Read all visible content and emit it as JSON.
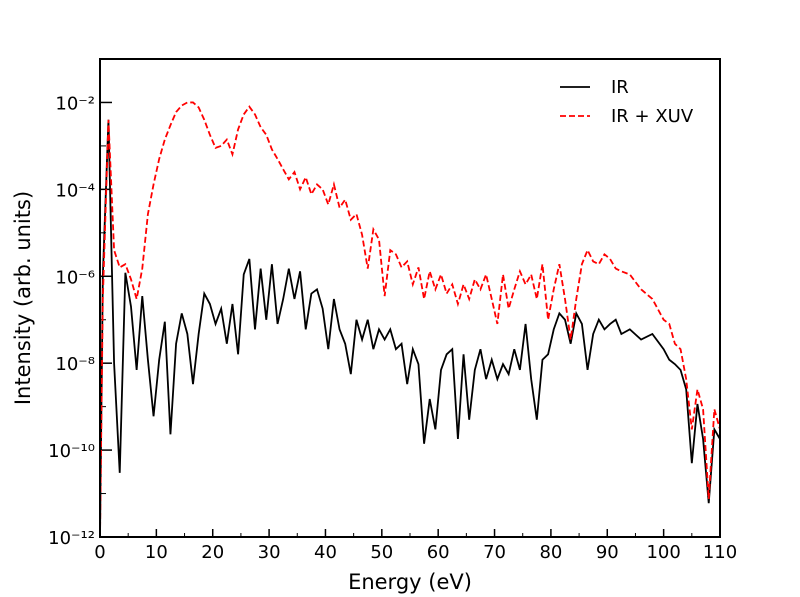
{
  "chart_data": {
    "type": "line",
    "xlabel": "Energy (eV)",
    "ylabel": "Intensity (arb. units)",
    "yscale": "log",
    "legend": "upper right",
    "xlim": [
      0,
      110
    ],
    "ylim": [
      1e-12,
      0.1
    ],
    "xticks": [
      0,
      10,
      20,
      30,
      40,
      50,
      60,
      70,
      80,
      90,
      100,
      110
    ],
    "xminorticks": [
      5,
      15,
      25,
      35,
      45,
      55,
      65,
      75,
      85,
      95,
      105
    ],
    "yticks": [
      {
        "value": 1e-12,
        "label": "10⁻¹²"
      },
      {
        "value": 1e-10,
        "label": "10⁻¹⁰"
      },
      {
        "value": 1e-08,
        "label": "10⁻⁸"
      },
      {
        "value": 1e-06,
        "label": "10⁻⁶"
      },
      {
        "value": 0.0001,
        "label": "10⁻⁴"
      },
      {
        "value": 0.01,
        "label": "10⁻²"
      }
    ],
    "yminorticks": [
      1e-11,
      1e-09,
      1e-07,
      1e-05,
      0.001,
      0.1
    ],
    "x": [
      0,
      0.5,
      1.5,
      2.5,
      3.5,
      4.5,
      5.5,
      6.5,
      7.5,
      8.5,
      9.5,
      10.5,
      11.5,
      12.5,
      13.5,
      14.5,
      15.5,
      16.5,
      17.5,
      18.5,
      19.5,
      20.5,
      21.5,
      22.5,
      23.5,
      24.5,
      25.5,
      26.5,
      27.5,
      28.5,
      29.5,
      30.5,
      31.5,
      32.5,
      33.5,
      34.5,
      35.5,
      36.5,
      37.5,
      38.5,
      39.5,
      40.5,
      41.5,
      42.5,
      43.5,
      44.5,
      45.5,
      46.5,
      47.5,
      48.5,
      49.5,
      50.5,
      51.5,
      52.5,
      53.5,
      54.5,
      55.5,
      56.5,
      57.5,
      58.5,
      59.5,
      60.5,
      61.5,
      62.5,
      63.5,
      64.5,
      65.5,
      66.5,
      67.5,
      68.5,
      69.5,
      70.5,
      71.5,
      72.5,
      73.5,
      74.5,
      75.5,
      76.5,
      77.5,
      78.5,
      79.5,
      80.5,
      81.5,
      82.5,
      83.5,
      84.5,
      85.5,
      86.5,
      87.5,
      88.5,
      89.5,
      90.5,
      91.5,
      92.5,
      94,
      96,
      98,
      100,
      101,
      102,
      103,
      104,
      105,
      106,
      107,
      108,
      109,
      110
    ],
    "series": [
      {
        "name": "IR",
        "color": "#000000",
        "dash": "solid",
        "values": [
          1e-12,
          1e-06,
          0.004,
          1e-08,
          3e-11,
          1.2e-06,
          2e-07,
          7e-09,
          3.5e-07,
          1.2e-08,
          6e-10,
          1.2e-08,
          9e-08,
          2.3e-10,
          2.8e-08,
          1.4e-07,
          4.7e-08,
          3.3e-09,
          4.7e-08,
          4e-07,
          2.3e-07,
          8e-08,
          1.8e-07,
          2.8e-08,
          2.3e-07,
          1.6e-08,
          1.1e-06,
          2.5e-06,
          6e-08,
          1.5e-06,
          1e-07,
          1.9e-06,
          8e-08,
          3e-07,
          1.5e-06,
          3e-07,
          1.3e-06,
          6e-08,
          4e-07,
          5e-07,
          1.8e-07,
          2.1e-08,
          3e-07,
          6e-08,
          2.8e-08,
          5.6e-09,
          1e-07,
          3.5e-08,
          1e-07,
          2.1e-08,
          6e-08,
          3.5e-08,
          6e-08,
          2.1e-08,
          2.8e-08,
          3.3e-09,
          2.1e-08,
          9.5e-09,
          1.4e-10,
          1.5e-09,
          3e-10,
          7e-09,
          1.6e-08,
          2.1e-08,
          1.8e-10,
          1.6e-08,
          5e-10,
          7e-09,
          2.1e-08,
          4.3e-09,
          1.2e-08,
          4.3e-09,
          9.5e-09,
          5.6e-09,
          2.1e-08,
          7e-09,
          8e-08,
          4.3e-09,
          5e-10,
          1.2e-08,
          1.6e-08,
          6e-08,
          1.4e-07,
          1e-07,
          2.8e-08,
          1.4e-07,
          8e-08,
          7e-09,
          4.7e-08,
          1e-07,
          6e-08,
          8e-08,
          1e-07,
          4.7e-08,
          6e-08,
          3.5e-08,
          4.7e-08,
          2.1e-08,
          1.2e-08,
          9.5e-09,
          7e-09,
          2.5e-09,
          5e-11,
          1.15e-09,
          1.8e-10,
          6e-12,
          3e-10,
          1.8e-10
        ]
      },
      {
        "name": "IR + XUV",
        "color": "#ff0000",
        "dash": "dashed",
        "values": [
          1e-12,
          3e-07,
          0.004,
          4e-06,
          1.6e-06,
          1.9e-06,
          8.5e-07,
          3e-07,
          1.5e-06,
          2.7e-05,
          0.00013,
          0.0005,
          0.0014,
          0.003,
          0.006,
          0.0085,
          0.01,
          0.01,
          0.0077,
          0.004,
          0.0018,
          0.0009,
          0.001,
          0.0014,
          0.00064,
          0.0024,
          0.0053,
          0.008,
          0.0053,
          0.0027,
          0.0018,
          0.00083,
          0.0005,
          0.00029,
          0.00017,
          0.00025,
          0.0001,
          0.00019,
          7.7e-05,
          0.00013,
          0.0001,
          4.5e-05,
          0.00013,
          3.8e-05,
          5.8e-05,
          2e-05,
          2.7e-05,
          9e-06,
          1.5e-06,
          1.2e-05,
          7e-06,
          3.5e-07,
          4e-06,
          3.2e-06,
          1.6e-06,
          2.2e-06,
          6.5e-07,
          1.6e-06,
          3e-07,
          1.3e-06,
          5e-07,
          1.1e-06,
          4e-07,
          6.5e-07,
          2.3e-07,
          6.5e-07,
          3e-07,
          8.5e-07,
          5e-07,
          1.1e-06,
          3e-07,
          8e-08,
          1.1e-06,
          1.8e-07,
          5e-07,
          1.3e-06,
          6.5e-07,
          1.1e-06,
          3e-07,
          1.9e-06,
          1e-07,
          5e-07,
          1.9e-06,
          3e-07,
          3.5e-08,
          3e-07,
          1.9e-06,
          4e-06,
          2.2e-06,
          1.9e-06,
          3.2e-06,
          2.5e-06,
          1.5e-06,
          1.3e-06,
          1.1e-06,
          5e-07,
          3e-07,
          1e-07,
          8e-08,
          2.8e-08,
          2.1e-08,
          4.3e-09,
          3e-10,
          2.5e-09,
          8.7e-10,
          7.5e-12,
          8.7e-10,
          3e-10
        ]
      }
    ]
  }
}
